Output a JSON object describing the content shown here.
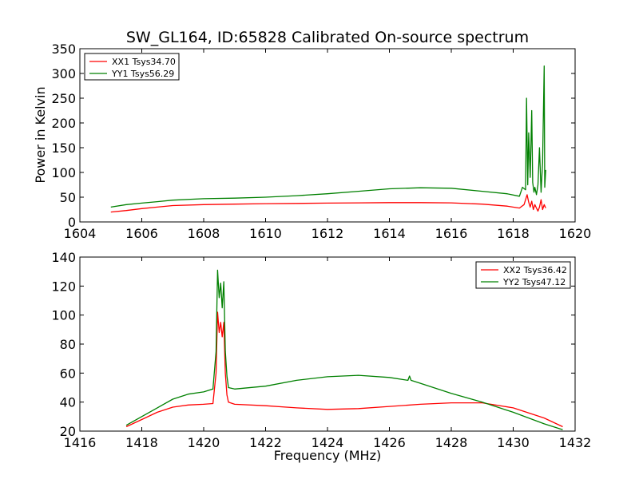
{
  "figure": {
    "title": "SW_GL164, ID:65828 Calibrated On-source spectrum",
    "ylabel": "Power in Kelvin",
    "xlabel": "Frequency (MHz)"
  },
  "colors": {
    "xx": "#ff0000",
    "yy": "#008000",
    "axes": "#000000",
    "background": "#ffffff"
  },
  "chart_data": [
    {
      "type": "line",
      "title": "SW_GL164, ID:65828 Calibrated On-source spectrum",
      "xlabel": "",
      "ylabel": "Power in Kelvin",
      "xlim": [
        1604,
        1620
      ],
      "ylim": [
        0,
        350
      ],
      "xticks": [
        1604,
        1606,
        1608,
        1610,
        1612,
        1614,
        1616,
        1618,
        1620
      ],
      "yticks": [
        0,
        50,
        100,
        150,
        200,
        250,
        300,
        350
      ],
      "legend": "top-left",
      "series": [
        {
          "name": "XX1 Tsys34.70",
          "color": "#ff0000",
          "x": [
            1605.0,
            1605.5,
            1606.0,
            1606.5,
            1607.0,
            1608.0,
            1609.0,
            1610.0,
            1611.0,
            1612.0,
            1613.0,
            1614.0,
            1615.0,
            1616.0,
            1617.0,
            1617.8,
            1618.2,
            1618.35,
            1618.45,
            1618.5,
            1618.55,
            1618.6,
            1618.65,
            1618.7,
            1618.75,
            1618.8,
            1618.85,
            1618.9,
            1618.95,
            1619.0,
            1619.05
          ],
          "y": [
            20,
            23,
            27,
            30,
            33,
            35,
            36,
            37,
            37.5,
            38,
            38.5,
            39,
            39,
            38.5,
            36,
            32,
            28,
            35,
            55,
            40,
            30,
            42,
            25,
            35,
            28,
            22,
            30,
            45,
            25,
            35,
            28
          ]
        },
        {
          "name": "YY1 Tsys56.29",
          "color": "#008000",
          "x": [
            1605.0,
            1605.5,
            1606.0,
            1606.5,
            1607.0,
            1608.0,
            1609.0,
            1610.0,
            1611.0,
            1612.0,
            1613.0,
            1614.0,
            1615.0,
            1616.0,
            1617.0,
            1617.8,
            1618.2,
            1618.3,
            1618.4,
            1618.43,
            1618.47,
            1618.5,
            1618.55,
            1618.6,
            1618.63,
            1618.67,
            1618.7,
            1618.75,
            1618.8,
            1618.85,
            1618.9,
            1618.95,
            1619.0,
            1619.02,
            1619.05
          ],
          "y": [
            30,
            35,
            38,
            41,
            44,
            47,
            48,
            50,
            53,
            57,
            62,
            67,
            69,
            68,
            62,
            57,
            52,
            70,
            65,
            250,
            75,
            180,
            90,
            225,
            80,
            60,
            70,
            55,
            75,
            150,
            60,
            120,
            315,
            70,
            105
          ]
        }
      ]
    },
    {
      "type": "line",
      "title": "",
      "xlabel": "Frequency (MHz)",
      "ylabel": "",
      "xlim": [
        1416,
        1432
      ],
      "ylim": [
        20,
        140
      ],
      "xticks": [
        1416,
        1418,
        1420,
        1422,
        1424,
        1426,
        1428,
        1430,
        1432
      ],
      "yticks": [
        20,
        40,
        60,
        80,
        100,
        120,
        140
      ],
      "legend": "top-right",
      "series": [
        {
          "name": "XX2 Tsys36.42",
          "color": "#ff0000",
          "x": [
            1417.5,
            1418.0,
            1418.5,
            1419.0,
            1419.5,
            1420.0,
            1420.3,
            1420.4,
            1420.45,
            1420.5,
            1420.55,
            1420.6,
            1420.65,
            1420.7,
            1420.75,
            1420.8,
            1421.0,
            1422.0,
            1423.0,
            1424.0,
            1425.0,
            1426.0,
            1427.0,
            1428.0,
            1429.0,
            1430.0,
            1431.0,
            1431.6
          ],
          "y": [
            23,
            28,
            33,
            36.5,
            38,
            38.5,
            39,
            60,
            102,
            88,
            95,
            85,
            95,
            60,
            45,
            40,
            38.5,
            37.5,
            36,
            35,
            35.5,
            37,
            38.5,
            39.5,
            39.5,
            36,
            29,
            23
          ]
        },
        {
          "name": "YY2 Tsys47.12",
          "color": "#008000",
          "x": [
            1417.5,
            1418.0,
            1418.5,
            1419.0,
            1419.5,
            1420.0,
            1420.3,
            1420.4,
            1420.45,
            1420.5,
            1420.55,
            1420.6,
            1420.65,
            1420.7,
            1420.75,
            1420.8,
            1421.0,
            1422.0,
            1423.0,
            1424.0,
            1425.0,
            1426.0,
            1426.6,
            1426.65,
            1426.7,
            1427.0,
            1428.0,
            1429.0,
            1430.0,
            1431.0,
            1431.6
          ],
          "y": [
            24,
            30,
            36,
            42,
            45.5,
            47,
            49,
            75,
            131,
            112,
            122,
            105,
            123,
            75,
            58,
            50,
            49,
            51,
            55,
            57.5,
            58.5,
            57,
            55,
            58,
            55,
            53,
            46,
            40,
            33,
            25,
            21
          ]
        }
      ]
    }
  ]
}
